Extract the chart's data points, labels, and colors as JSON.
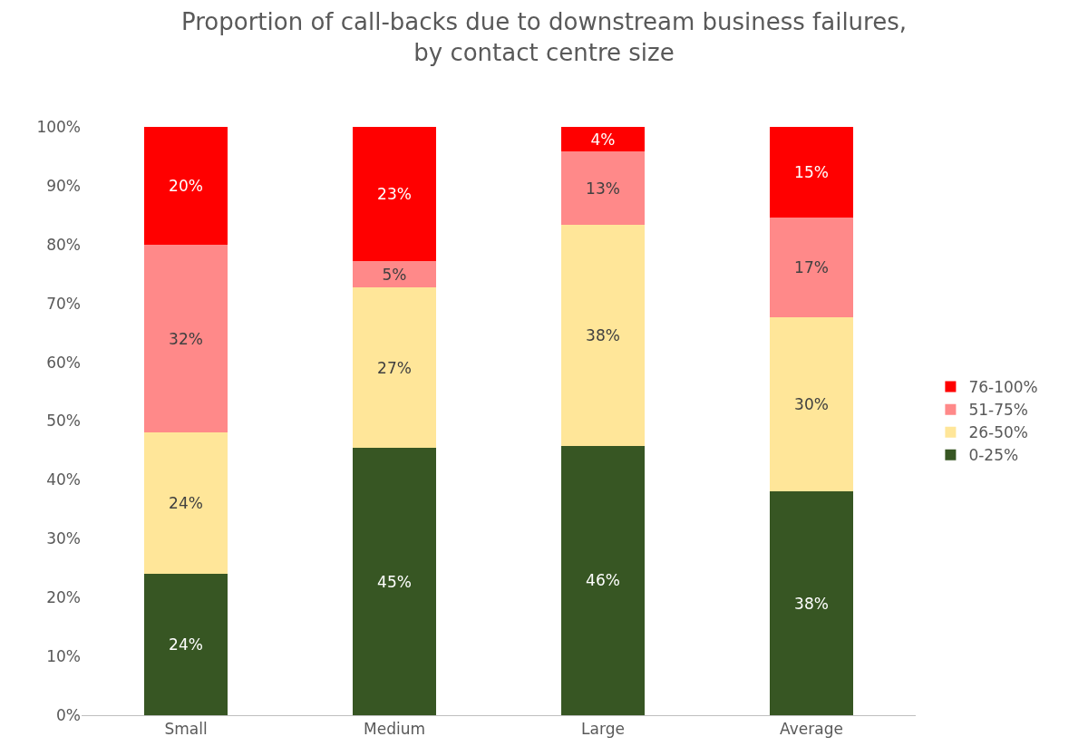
{
  "chart_data": {
    "type": "bar",
    "stacked": true,
    "title": "Proportion of call-backs due to downstream business failures,\nby contact centre size",
    "categories": [
      "Small",
      "Medium",
      "Large",
      "Average"
    ],
    "series": [
      {
        "name": "0-25%",
        "color": "#375623",
        "values": [
          24,
          45.4,
          45.8,
          38.0
        ],
        "value_labels": [
          "24%",
          "45%",
          "46%",
          "38%"
        ]
      },
      {
        "name": "26-50%",
        "color": "#ffe699",
        "values": [
          24,
          27.3,
          37.5,
          29.6
        ],
        "value_labels": [
          "24%",
          "27%",
          "38%",
          "30%"
        ]
      },
      {
        "name": "51-75%",
        "color": "#ff8989",
        "values": [
          32,
          4.5,
          12.5,
          17.0
        ],
        "value_labels": [
          "32%",
          "5%",
          "13%",
          "17%"
        ]
      },
      {
        "name": "76-100%",
        "color": "#ff0000",
        "values": [
          20,
          22.8,
          4.2,
          15.4
        ],
        "value_labels": [
          "20%",
          "23%",
          "4%",
          "15%"
        ]
      }
    ],
    "ylim": [
      0,
      100
    ],
    "yticks": [
      {
        "value": 0,
        "label": "0%"
      },
      {
        "value": 10,
        "label": "10%"
      },
      {
        "value": 20,
        "label": "20%"
      },
      {
        "value": 30,
        "label": "30%"
      },
      {
        "value": 40,
        "label": "40%"
      },
      {
        "value": 50,
        "label": "50%"
      },
      {
        "value": 60,
        "label": "60%"
      },
      {
        "value": 70,
        "label": "70%"
      },
      {
        "value": 80,
        "label": "80%"
      },
      {
        "value": 90,
        "label": "90%"
      },
      {
        "value": 100,
        "label": "100%"
      }
    ],
    "grid": false,
    "legend": "right"
  }
}
